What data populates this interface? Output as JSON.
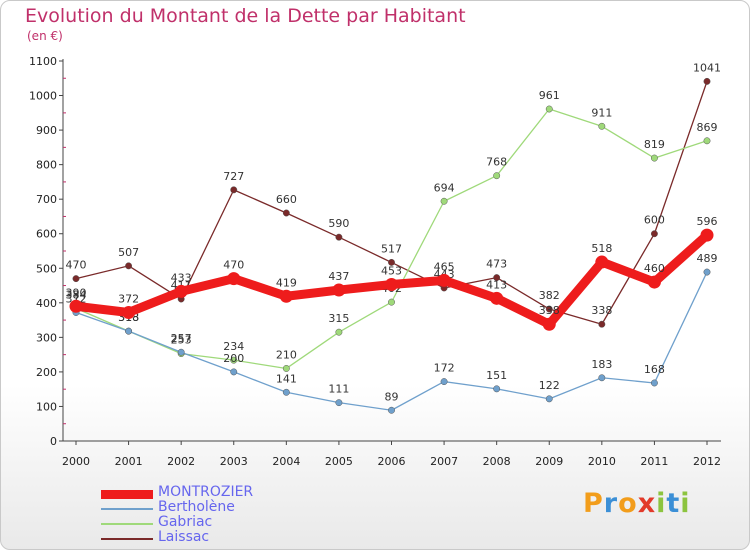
{
  "title": "Evolution du Montant de la Dette par Habitant",
  "subtitle": "(en €)",
  "logo": {
    "text": "Proxiti",
    "colors": [
      "#f29d1b",
      "#3b8fd6",
      "#f29d1b",
      "#e23a2a",
      "#8cc43f",
      "#3b8fd6",
      "#8cc43f"
    ]
  },
  "chart_data": {
    "type": "line",
    "x": [
      "2000",
      "2001",
      "2002",
      "2003",
      "2004",
      "2005",
      "2006",
      "2007",
      "2008",
      "2009",
      "2010",
      "2011",
      "2012"
    ],
    "ylim": [
      0,
      1100
    ],
    "yticks": [
      0,
      100,
      200,
      300,
      400,
      500,
      600,
      700,
      800,
      900,
      1000,
      1100
    ],
    "grid": false,
    "legend": "bottom-left",
    "series": [
      {
        "name": "MONTROZIER",
        "color": "#ee1c1c",
        "text_color": "#6666ee",
        "values": [
          390,
          372,
          433,
          470,
          419,
          437,
          453,
          465,
          413,
          338,
          518,
          460,
          596
        ]
      },
      {
        "name": "Bertholène",
        "color": "#6fa0cc",
        "text_color": "#6666ee",
        "values": [
          372,
          318,
          257,
          200,
          141,
          111,
          89,
          172,
          151,
          122,
          183,
          168,
          489
        ]
      },
      {
        "name": "Gabriac",
        "color": "#9fd97a",
        "text_color": "#6666ee",
        "values": [
          384,
          318,
          253,
          234,
          210,
          315,
          402,
          694,
          768,
          961,
          911,
          819,
          869
        ]
      },
      {
        "name": "Laissac",
        "color": "#7a2a2a",
        "text_color": "#6666ee",
        "values": [
          470,
          507,
          411,
          727,
          660,
          590,
          517,
          443,
          473,
          382,
          338,
          600,
          1041
        ]
      }
    ]
  }
}
